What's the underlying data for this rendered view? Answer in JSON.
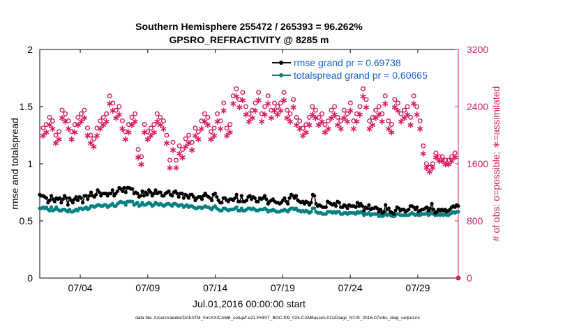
{
  "colors": {
    "rmse": "#000000",
    "spread": "#008080",
    "obs": "#d81b60",
    "legend_text": "#1560d8",
    "axis": "#000000"
  },
  "chart_data": {
    "type": "line",
    "title": [
      "Southern Hemisphere 255472 / 265393 = 96.262%",
      "GPSRO_REFRACTIVITY @ 8285 m"
    ],
    "xlabel": "Jul.01,2016 00:00:00 start",
    "ylabel_left": "rmse and totalspread",
    "ylabel_right": "# of obs: o=possible; ∗=assimilated",
    "footnote": "data file: /Users/raeder/DAI/ATM_forcXX/CAM6_setup/f.e21.FHIST_BGC.f09_025.CAM6assim.011/Diags_NTrS_2016-07/obs_diag_output.nc",
    "x_range": [
      0,
      31
    ],
    "x_ticks": [
      3,
      8,
      13,
      18,
      23,
      28
    ],
    "x_tick_labels": [
      "07/04",
      "07/09",
      "07/14",
      "07/19",
      "07/24",
      "07/29"
    ],
    "ylim_left": [
      0,
      2
    ],
    "yticks_left": [
      "0",
      "0.5",
      "1",
      "1.5",
      "2"
    ],
    "ylim_right": [
      0,
      3200
    ],
    "yticks_right": [
      "0",
      "800",
      "1600",
      "2400",
      "3200"
    ],
    "legend": [
      {
        "label": "rmse grand pr = 0.69738",
        "series": "rmse"
      },
      {
        "label": "totalspread grand pr = 0.60665",
        "series": "spread"
      }
    ],
    "series": [
      {
        "name": "rmse",
        "axis": "left",
        "values": [
          0.73,
          0.72,
          0.72,
          0.71,
          0.7,
          0.66,
          0.68,
          0.72,
          0.69,
          0.67,
          0.7,
          0.69,
          0.7,
          0.66,
          0.69,
          0.72,
          0.7,
          0.64,
          0.7,
          0.68,
          0.66,
          0.69,
          0.71,
          0.68,
          0.71,
          0.7,
          0.66,
          0.72,
          0.72,
          0.69,
          0.72,
          0.75,
          0.72,
          0.71,
          0.73,
          0.77,
          0.75,
          0.72,
          0.74,
          0.74,
          0.74,
          0.72,
          0.74,
          0.74,
          0.77,
          0.72,
          0.74,
          0.76,
          0.79,
          0.78,
          0.76,
          0.79,
          0.75,
          0.79,
          0.79,
          0.78,
          0.78,
          0.74,
          0.75,
          0.74,
          0.71,
          0.72,
          0.76,
          0.72,
          0.75,
          0.73,
          0.77,
          0.75,
          0.72,
          0.74,
          0.77,
          0.74,
          0.75,
          0.75,
          0.72,
          0.72,
          0.74,
          0.75,
          0.76,
          0.73,
          0.72,
          0.75,
          0.76,
          0.74,
          0.71,
          0.74,
          0.74,
          0.7,
          0.73,
          0.72,
          0.7,
          0.73,
          0.73,
          0.71,
          0.68,
          0.7,
          0.71,
          0.71,
          0.69,
          0.72,
          0.74,
          0.72,
          0.71,
          0.7,
          0.68,
          0.73,
          0.74,
          0.71,
          0.68,
          0.66,
          0.66,
          0.7,
          0.7,
          0.68,
          0.67,
          0.69,
          0.69,
          0.68,
          0.7,
          0.73,
          0.67,
          0.67,
          0.72,
          0.67,
          0.67,
          0.68,
          0.71,
          0.72,
          0.69,
          0.71,
          0.7,
          0.67,
          0.67,
          0.7,
          0.69,
          0.7,
          0.72,
          0.69,
          0.65,
          0.67,
          0.68,
          0.69,
          0.67,
          0.66,
          0.66,
          0.65,
          0.66,
          0.68,
          0.7,
          0.67,
          0.65,
          0.7,
          0.73,
          0.72,
          0.7,
          0.72,
          0.68,
          0.67,
          0.66,
          0.67,
          0.65,
          0.67,
          0.66,
          0.64,
          0.66,
          0.73,
          0.72,
          0.65,
          0.63,
          0.64,
          0.63,
          0.62,
          0.62,
          0.62,
          0.67,
          0.66,
          0.65,
          0.64,
          0.65,
          0.63,
          0.67,
          0.66,
          0.62,
          0.62,
          0.64,
          0.63,
          0.61,
          0.64,
          0.63,
          0.63,
          0.63,
          0.62,
          0.66,
          0.63,
          0.65,
          0.63,
          0.59,
          0.62,
          0.61,
          0.64,
          0.6,
          0.61,
          0.61,
          0.62,
          0.61,
          0.58,
          0.6,
          0.57,
          0.58,
          0.64,
          0.6,
          0.61,
          0.58,
          0.57,
          0.56,
          0.59,
          0.62,
          0.61,
          0.59,
          0.6,
          0.6,
          0.58,
          0.59,
          0.6,
          0.63,
          0.63,
          0.62,
          0.6,
          0.62,
          0.58,
          0.59,
          0.6,
          0.6,
          0.61,
          0.62,
          0.59,
          0.61,
          0.65,
          0.6,
          0.57,
          0.58,
          0.6,
          0.59,
          0.6,
          0.59,
          0.6,
          0.58,
          0.59,
          0.6,
          0.62,
          0.63,
          0.62,
          0.64,
          0.63
        ]
      },
      {
        "name": "spread",
        "axis": "left",
        "values": [
          0.61,
          0.61,
          0.62,
          0.61,
          0.62,
          0.6,
          0.59,
          0.62,
          0.59,
          0.6,
          0.62,
          0.6,
          0.59,
          0.59,
          0.6,
          0.6,
          0.59,
          0.58,
          0.6,
          0.58,
          0.58,
          0.59,
          0.6,
          0.59,
          0.61,
          0.61,
          0.6,
          0.61,
          0.62,
          0.6,
          0.61,
          0.63,
          0.63,
          0.62,
          0.63,
          0.64,
          0.64,
          0.63,
          0.63,
          0.64,
          0.64,
          0.62,
          0.63,
          0.64,
          0.65,
          0.63,
          0.63,
          0.65,
          0.66,
          0.67,
          0.66,
          0.66,
          0.64,
          0.67,
          0.67,
          0.67,
          0.67,
          0.64,
          0.65,
          0.66,
          0.63,
          0.64,
          0.66,
          0.64,
          0.64,
          0.65,
          0.66,
          0.65,
          0.63,
          0.64,
          0.66,
          0.65,
          0.64,
          0.65,
          0.64,
          0.63,
          0.64,
          0.65,
          0.65,
          0.64,
          0.63,
          0.65,
          0.65,
          0.64,
          0.63,
          0.64,
          0.64,
          0.62,
          0.63,
          0.64,
          0.62,
          0.63,
          0.63,
          0.62,
          0.61,
          0.61,
          0.62,
          0.62,
          0.61,
          0.62,
          0.63,
          0.62,
          0.62,
          0.61,
          0.6,
          0.62,
          0.63,
          0.61,
          0.6,
          0.59,
          0.59,
          0.61,
          0.61,
          0.6,
          0.59,
          0.6,
          0.6,
          0.6,
          0.61,
          0.62,
          0.59,
          0.59,
          0.61,
          0.59,
          0.59,
          0.6,
          0.61,
          0.61,
          0.6,
          0.61,
          0.6,
          0.59,
          0.59,
          0.6,
          0.6,
          0.6,
          0.61,
          0.6,
          0.58,
          0.59,
          0.59,
          0.6,
          0.59,
          0.58,
          0.58,
          0.58,
          0.59,
          0.59,
          0.6,
          0.59,
          0.58,
          0.6,
          0.61,
          0.61,
          0.6,
          0.61,
          0.59,
          0.59,
          0.58,
          0.59,
          0.58,
          0.59,
          0.58,
          0.57,
          0.58,
          0.61,
          0.61,
          0.58,
          0.57,
          0.57,
          0.57,
          0.56,
          0.56,
          0.56,
          0.58,
          0.58,
          0.58,
          0.57,
          0.58,
          0.57,
          0.58,
          0.58,
          0.56,
          0.56,
          0.57,
          0.57,
          0.56,
          0.57,
          0.57,
          0.57,
          0.57,
          0.56,
          0.58,
          0.57,
          0.58,
          0.57,
          0.55,
          0.56,
          0.56,
          0.57,
          0.55,
          0.56,
          0.56,
          0.56,
          0.56,
          0.54,
          0.55,
          0.54,
          0.55,
          0.57,
          0.55,
          0.56,
          0.55,
          0.54,
          0.54,
          0.55,
          0.56,
          0.56,
          0.55,
          0.55,
          0.55,
          0.55,
          0.55,
          0.55,
          0.56,
          0.57,
          0.56,
          0.55,
          0.56,
          0.55,
          0.55,
          0.56,
          0.56,
          0.56,
          0.57,
          0.55,
          0.56,
          0.58,
          0.56,
          0.55,
          0.55,
          0.56,
          0.55,
          0.56,
          0.55,
          0.56,
          0.55,
          0.55,
          0.56,
          0.57,
          0.58,
          0.57,
          0.58,
          0.58
        ]
      },
      {
        "name": "obs_possible",
        "axis": "right",
        "values": [
          2100,
          2150,
          2250,
          2200,
          2000,
          2050,
          2350,
          2300,
          2200,
          2050,
          2150,
          2250,
          2300,
          2350,
          2100,
          2000,
          1950,
          2100,
          2200,
          2250,
          2300,
          2550,
          2450,
          2350,
          2400,
          2200,
          2050,
          2150,
          2250,
          2300,
          1800,
          1700,
          2150,
          2050,
          2100,
          2150,
          2300,
          2250,
          2200,
          2000,
          1650,
          1900,
          1650,
          1850,
          1800,
          1950,
          2000,
          1900,
          2100,
          2050,
          2200,
          2300,
          2250,
          2050,
          2100,
          2300,
          2200,
          2450,
          2100,
          2150,
          2550,
          2650,
          2500,
          2600,
          2400,
          2300,
          2350,
          2450,
          2600,
          2300,
          2400,
          2550,
          2350,
          2450,
          2400,
          2450,
          2600,
          2350,
          2300,
          2500,
          2250,
          2200,
          2100,
          2150,
          2250,
          2400,
          2350,
          2250,
          2300,
          2150,
          2200,
          2350,
          2400,
          2250,
          2200,
          2350,
          2300,
          2450,
          2200,
          2300,
          2400,
          2650,
          2500,
          2200,
          2250,
          2350,
          2400,
          2300,
          2550,
          2200,
          2150,
          2500,
          2450,
          2300,
          2350,
          2400,
          2250,
          2550,
          2400,
          2200,
          1850,
          1600,
          1550,
          1600,
          1750,
          1700,
          1700,
          1650,
          1650,
          1700,
          1750
        ]
      },
      {
        "name": "obs_assimilated",
        "axis": "right",
        "values": [
          2000,
          2050,
          2150,
          2100,
          1900,
          1950,
          2250,
          2200,
          2100,
          1950,
          2050,
          2150,
          2200,
          2250,
          2000,
          1900,
          1850,
          2000,
          2100,
          2150,
          2200,
          2450,
          2350,
          2250,
          2300,
          2100,
          1950,
          2050,
          2150,
          2200,
          1700,
          1600,
          2050,
          1950,
          2000,
          2050,
          2200,
          2150,
          2100,
          1900,
          1550,
          1800,
          1550,
          1750,
          1700,
          1850,
          1900,
          1800,
          2000,
          1950,
          2100,
          2200,
          2150,
          1950,
          2000,
          2200,
          2100,
          2350,
          2000,
          2050,
          2450,
          2550,
          2400,
          2500,
          2300,
          2200,
          2250,
          2350,
          2500,
          2200,
          2300,
          2450,
          2250,
          2350,
          2300,
          2350,
          2500,
          2250,
          2200,
          2400,
          2150,
          2100,
          2000,
          2050,
          2150,
          2300,
          2250,
          2150,
          2200,
          2050,
          2100,
          2250,
          2300,
          2150,
          2100,
          2250,
          2200,
          2350,
          2100,
          2200,
          2300,
          2550,
          2400,
          2100,
          2150,
          2250,
          2300,
          2200,
          2450,
          2100,
          2050,
          2400,
          2350,
          2200,
          2250,
          2300,
          2150,
          2450,
          2300,
          2100,
          1750,
          1550,
          1500,
          1550,
          1700,
          1650,
          1650,
          1600,
          1600,
          1650,
          1700
        ]
      }
    ]
  }
}
